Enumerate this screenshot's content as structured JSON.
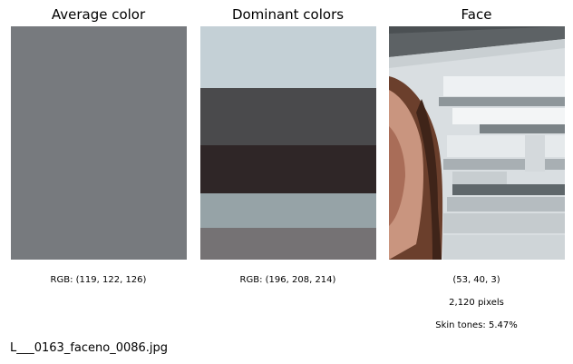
{
  "panels": {
    "average": {
      "title": "Average color",
      "rgb_label": "RGB: (119, 122, 126)",
      "color": "#777a7e"
    },
    "dominant": {
      "title": "Dominant colors",
      "rgb_label": "RGB: (196, 208, 214)",
      "colors": [
        {
          "hex": "#c4d0d6",
          "fraction": 0.265
        },
        {
          "hex": "#4a4a4c",
          "fraction": 0.245
        },
        {
          "hex": "#2f2627",
          "fraction": 0.205
        },
        {
          "hex": "#96a3a7",
          "fraction": 0.15
        },
        {
          "hex": "#757274",
          "fraction": 0.135
        }
      ]
    },
    "face": {
      "title": "Face",
      "color_label": "(53, 40, 3)",
      "pixels_label": "2,120 pixels",
      "skin_label": "Skin tones: 5.47%"
    }
  },
  "filename": "L___0163_faceno_0086.jpg",
  "chart_data": [
    {
      "type": "table",
      "title": "Average color",
      "values": [
        119,
        122,
        126
      ],
      "label": "RGB: (119, 122, 126)"
    },
    {
      "type": "bar",
      "title": "Dominant colors",
      "categories": [
        "#c4d0d6",
        "#4a4a4c",
        "#2f2627",
        "#96a3a7",
        "#757274"
      ],
      "values": [
        0.265,
        0.245,
        0.205,
        0.15,
        0.135
      ],
      "label": "RGB: (196, 208, 214)"
    },
    {
      "type": "table",
      "title": "Face",
      "values": [
        "(53, 40, 3)",
        "2,120 pixels",
        "Skin tones: 5.47%"
      ]
    }
  ]
}
